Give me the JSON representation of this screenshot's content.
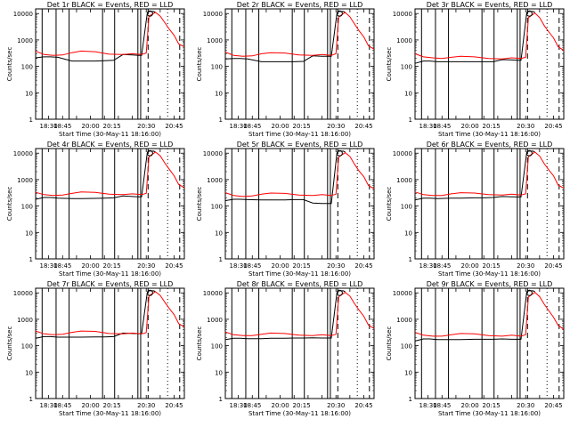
{
  "figure": {
    "background": "#ffffff",
    "panel_titles": [
      "Det 1r BLACK = Events, RED = LLD",
      "Det 2r BLACK = Events, RED = LLD",
      "Det 3r BLACK = Events, RED = LLD",
      "Det 4r BLACK = Events, RED = LLD",
      "Det 5r BLACK = Events, RED = LLD",
      "Det 6r BLACK = Events, RED = LLD",
      "Det 7r BLACK = Events, RED = LLD",
      "Det 8r BLACK = Events, RED = LLD",
      "Det 9r BLACK = Events, RED = LLD"
    ]
  },
  "chart_data": {
    "type": "line",
    "layout": "3x3 grid of identical-format panels",
    "xlabel": "Start Time (30-May-11 18:16:00)",
    "ylabel": "Counts/sec",
    "y_scale": "log",
    "ylim": [
      1,
      15000
    ],
    "y_tick_labels": [
      "1",
      "10",
      "100",
      "1000",
      "10000"
    ],
    "y_tick_values": [
      1,
      10,
      100,
      1000,
      10000
    ],
    "xlim": [
      "18:16",
      "20:56"
    ],
    "x_tick_labels": [
      "18:30",
      "18:45",
      "20:00",
      "20:15",
      "20:30",
      "20:45"
    ],
    "series": [
      {
        "name": "Events",
        "color": "#000000"
      },
      {
        "name": "LLD",
        "color": "#ff0000"
      }
    ],
    "panel_series": [
      {
        "events": {
          "x": [
            "18:16",
            "18:25",
            "18:32",
            "18:40",
            "18:55",
            "19:05",
            "19:20",
            "19:30",
            "19:40",
            "19:50",
            "20:00",
            "20:07",
            "20:10",
            "20:16",
            "20:18",
            "20:20",
            "20:23",
            "20:25"
          ],
          "y": [
            210,
            230,
            230,
            220,
            160,
            160,
            160,
            165,
            170,
            280,
            270,
            260,
            260,
            10000,
            12000,
            12000,
            12000,
            11000
          ]
        },
        "lld": {
          "x": [
            "18:16",
            "18:25",
            "18:35",
            "18:45",
            "18:55",
            "19:05",
            "19:20",
            "19:35",
            "19:50",
            "20:00",
            "20:10",
            "20:15",
            "20:18",
            "20:25",
            "20:30",
            "20:35",
            "20:40",
            "20:45",
            "20:50",
            "20:56"
          ],
          "y": [
            380,
            280,
            260,
            270,
            330,
            380,
            360,
            290,
            280,
            300,
            280,
            320,
            8000,
            11000,
            8000,
            4500,
            2500,
            1500,
            700,
            550
          ]
        }
      },
      {
        "events": {
          "x": [
            "18:16",
            "18:25",
            "18:32",
            "18:40",
            "18:55",
            "19:05",
            "19:20",
            "19:30",
            "19:40",
            "19:50",
            "20:00",
            "20:07",
            "20:10",
            "20:16",
            "20:18",
            "20:20",
            "20:23",
            "20:25"
          ],
          "y": [
            190,
            200,
            200,
            190,
            150,
            150,
            150,
            150,
            155,
            250,
            240,
            240,
            240,
            10000,
            12000,
            12000,
            12000,
            11000
          ]
        },
        "lld": {
          "x": [
            "18:16",
            "18:25",
            "18:35",
            "18:45",
            "18:55",
            "19:05",
            "19:20",
            "19:35",
            "19:50",
            "20:00",
            "20:10",
            "20:15",
            "20:18",
            "20:25",
            "20:30",
            "20:35",
            "20:40",
            "20:45",
            "20:50",
            "20:56"
          ],
          "y": [
            350,
            260,
            240,
            250,
            300,
            330,
            320,
            270,
            260,
            280,
            260,
            300,
            7500,
            11000,
            7500,
            4000,
            2200,
            1300,
            600,
            450
          ]
        }
      },
      {
        "events": {
          "x": [
            "18:16",
            "18:25",
            "18:32",
            "18:40",
            "18:55",
            "19:05",
            "19:20",
            "19:30",
            "19:40",
            "19:50",
            "20:00",
            "20:07",
            "20:10",
            "20:16",
            "20:18",
            "20:20",
            "20:23",
            "20:25"
          ],
          "y": [
            130,
            160,
            160,
            150,
            150,
            150,
            150,
            150,
            150,
            180,
            175,
            170,
            170,
            10000,
            12000,
            12000,
            12000,
            11000
          ]
        },
        "lld": {
          "x": [
            "18:16",
            "18:25",
            "18:35",
            "18:45",
            "18:55",
            "19:05",
            "19:20",
            "19:35",
            "19:50",
            "20:00",
            "20:10",
            "20:15",
            "20:18",
            "20:25",
            "20:30",
            "20:35",
            "20:40",
            "20:45",
            "20:50",
            "20:56"
          ],
          "y": [
            300,
            230,
            210,
            200,
            220,
            240,
            230,
            200,
            190,
            210,
            200,
            220,
            7000,
            10500,
            7000,
            3500,
            2000,
            1200,
            550,
            400
          ]
        }
      },
      {
        "events": {
          "x": [
            "18:16",
            "18:25",
            "18:32",
            "18:40",
            "18:55",
            "19:05",
            "19:20",
            "19:30",
            "19:40",
            "19:50",
            "20:00",
            "20:07",
            "20:10",
            "20:16",
            "20:18",
            "20:20",
            "20:23",
            "20:25"
          ],
          "y": [
            180,
            210,
            210,
            200,
            190,
            190,
            195,
            200,
            205,
            240,
            230,
            225,
            225,
            10000,
            12000,
            12000,
            12000,
            11000
          ]
        },
        "lld": {
          "x": [
            "18:16",
            "18:25",
            "18:35",
            "18:45",
            "18:55",
            "19:05",
            "19:20",
            "19:35",
            "19:50",
            "20:00",
            "20:10",
            "20:15",
            "20:18",
            "20:25",
            "20:30",
            "20:35",
            "20:40",
            "20:45",
            "20:50",
            "20:56"
          ],
          "y": [
            330,
            270,
            250,
            260,
            300,
            340,
            330,
            280,
            270,
            290,
            270,
            300,
            7500,
            11000,
            8000,
            4200,
            2400,
            1400,
            650,
            500
          ]
        }
      },
      {
        "events": {
          "x": [
            "18:16",
            "18:25",
            "18:32",
            "18:40",
            "18:55",
            "19:05",
            "19:20",
            "19:30",
            "19:40",
            "19:50",
            "20:00",
            "20:07",
            "20:10",
            "20:16",
            "20:18",
            "20:20",
            "20:23",
            "20:25"
          ],
          "y": [
            160,
            180,
            180,
            175,
            170,
            170,
            170,
            175,
            175,
            130,
            125,
            125,
            125,
            10000,
            12000,
            12000,
            12000,
            11000
          ]
        },
        "lld": {
          "x": [
            "18:16",
            "18:25",
            "18:35",
            "18:45",
            "18:55",
            "19:05",
            "19:20",
            "19:35",
            "19:50",
            "20:00",
            "20:10",
            "20:15",
            "20:18",
            "20:25",
            "20:30",
            "20:35",
            "20:40",
            "20:45",
            "20:50",
            "20:56"
          ],
          "y": [
            320,
            250,
            230,
            240,
            280,
            310,
            300,
            260,
            250,
            270,
            250,
            280,
            7200,
            10500,
            7500,
            3800,
            2100,
            1300,
            600,
            450
          ]
        }
      },
      {
        "events": {
          "x": [
            "18:16",
            "18:25",
            "18:32",
            "18:40",
            "18:55",
            "19:05",
            "19:20",
            "19:30",
            "19:40",
            "19:50",
            "20:00",
            "20:07",
            "20:10",
            "20:16",
            "20:18",
            "20:20",
            "20:23",
            "20:25"
          ],
          "y": [
            170,
            200,
            200,
            190,
            200,
            200,
            205,
            205,
            210,
            230,
            225,
            220,
            220,
            10000,
            12000,
            12000,
            12000,
            11000
          ]
        },
        "lld": {
          "x": [
            "18:16",
            "18:25",
            "18:35",
            "18:45",
            "18:55",
            "19:05",
            "19:20",
            "19:35",
            "19:50",
            "20:00",
            "20:10",
            "20:15",
            "20:18",
            "20:25",
            "20:30",
            "20:35",
            "20:40",
            "20:45",
            "20:50",
            "20:56"
          ],
          "y": [
            340,
            270,
            250,
            250,
            290,
            320,
            310,
            270,
            260,
            280,
            260,
            290,
            7500,
            11000,
            7800,
            4000,
            2300,
            1400,
            620,
            480
          ]
        }
      },
      {
        "events": {
          "x": [
            "18:16",
            "18:25",
            "18:32",
            "18:40",
            "18:55",
            "19:05",
            "19:20",
            "19:30",
            "19:40",
            "19:50",
            "20:00",
            "20:07",
            "20:10",
            "20:16",
            "20:18",
            "20:20",
            "20:23",
            "20:25"
          ],
          "y": [
            190,
            220,
            220,
            210,
            210,
            210,
            215,
            215,
            220,
            300,
            290,
            285,
            285,
            10000,
            12000,
            12000,
            12000,
            11000
          ]
        },
        "lld": {
          "x": [
            "18:16",
            "18:25",
            "18:35",
            "18:45",
            "18:55",
            "19:05",
            "19:20",
            "19:35",
            "19:50",
            "20:00",
            "20:10",
            "20:15",
            "20:18",
            "20:25",
            "20:30",
            "20:35",
            "20:40",
            "20:45",
            "20:50",
            "20:56"
          ],
          "y": [
            360,
            280,
            260,
            270,
            320,
            360,
            350,
            290,
            280,
            300,
            280,
            310,
            7800,
            11000,
            8000,
            4400,
            2500,
            1500,
            680,
            520
          ]
        }
      },
      {
        "events": {
          "x": [
            "18:16",
            "18:25",
            "18:32",
            "18:40",
            "18:55",
            "19:05",
            "19:20",
            "19:30",
            "19:40",
            "19:50",
            "20:00",
            "20:07",
            "20:10",
            "20:16",
            "20:18",
            "20:20",
            "20:23",
            "20:25"
          ],
          "y": [
            170,
            190,
            190,
            185,
            185,
            190,
            190,
            195,
            195,
            200,
            195,
            195,
            195,
            10000,
            12000,
            12000,
            12000,
            11000
          ]
        },
        "lld": {
          "x": [
            "18:16",
            "18:25",
            "18:35",
            "18:45",
            "18:55",
            "19:05",
            "19:20",
            "19:35",
            "19:50",
            "20:00",
            "20:10",
            "20:15",
            "20:18",
            "20:25",
            "20:30",
            "20:35",
            "20:40",
            "20:45",
            "20:50",
            "20:56"
          ],
          "y": [
            330,
            260,
            240,
            240,
            270,
            300,
            290,
            250,
            240,
            260,
            240,
            270,
            7200,
            10500,
            7500,
            3900,
            2200,
            1300,
            600,
            450
          ]
        }
      },
      {
        "events": {
          "x": [
            "18:16",
            "18:25",
            "18:32",
            "18:40",
            "18:55",
            "19:05",
            "19:20",
            "19:30",
            "19:40",
            "19:50",
            "20:00",
            "20:07",
            "20:10",
            "20:16",
            "20:18",
            "20:20",
            "20:23",
            "20:25"
          ],
          "y": [
            150,
            180,
            180,
            170,
            170,
            170,
            175,
            175,
            175,
            180,
            175,
            175,
            175,
            10000,
            12000,
            12000,
            12000,
            11000
          ]
        },
        "lld": {
          "x": [
            "18:16",
            "18:25",
            "18:35",
            "18:45",
            "18:55",
            "19:05",
            "19:20",
            "19:35",
            "19:50",
            "20:00",
            "20:10",
            "20:15",
            "20:18",
            "20:25",
            "20:30",
            "20:35",
            "20:40",
            "20:45",
            "20:50",
            "20:56"
          ],
          "y": [
            320,
            250,
            230,
            230,
            260,
            290,
            280,
            240,
            230,
            250,
            230,
            260,
            7000,
            10500,
            7200,
            3700,
            2100,
            1200,
            580,
            420
          ]
        }
      }
    ],
    "solid_vertical_lines": [
      "18:23",
      "18:38",
      "18:52",
      "19:28",
      "19:41",
      "20:06",
      "20:09"
    ],
    "dashed_vertical_lines": [
      "20:17",
      "20:51"
    ],
    "dotted_vertical_lines": [
      "20:38"
    ],
    "marker": {
      "x": "20:19",
      "y": 10000,
      "shape": "circle"
    },
    "grid": false,
    "legend": "encoded in panel titles"
  }
}
